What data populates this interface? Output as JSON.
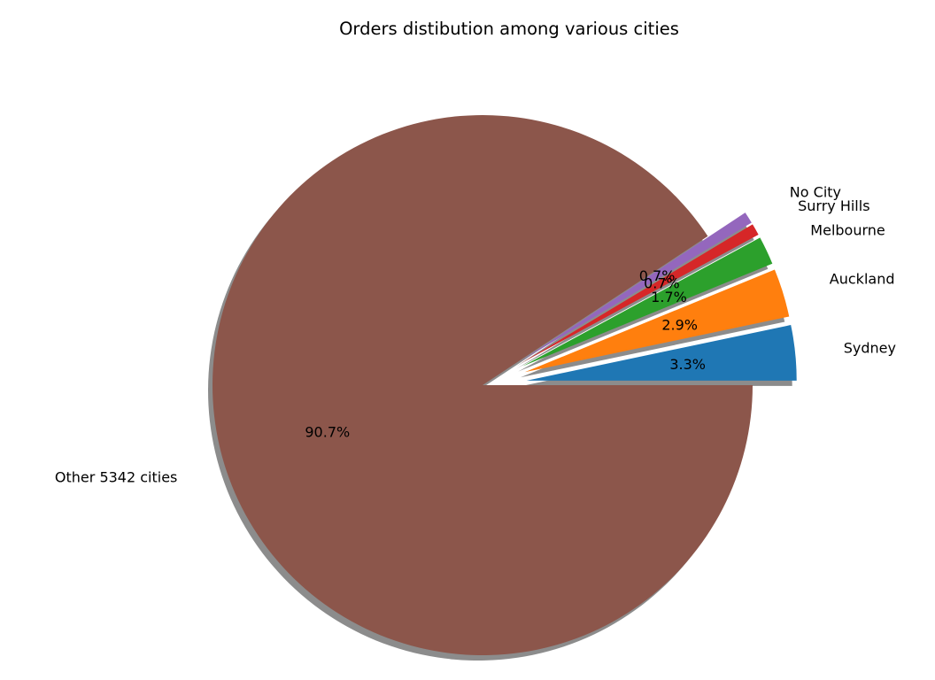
{
  "chart_data": {
    "type": "pie",
    "title": "Orders distibution among various cities",
    "labels": [
      "Sydney",
      "Auckland",
      "Melbourne",
      "Surry Hills",
      "No City",
      "Other 5342 cities"
    ],
    "values": [
      3.3,
      2.9,
      1.7,
      0.7,
      0.7,
      90.7
    ],
    "percent_labels": [
      "3.3%",
      "2.9%",
      "1.7%",
      "0.7%",
      "0.7%",
      "90.7%"
    ],
    "colors": [
      "#1f77b4",
      "#ff7f0e",
      "#2ca02c",
      "#d62728",
      "#9467bd",
      "#8c564b"
    ],
    "exploded": [
      true,
      true,
      true,
      true,
      true,
      false
    ],
    "shadow": true,
    "start_angle_deg": 0,
    "direction": "counterclockwise"
  }
}
